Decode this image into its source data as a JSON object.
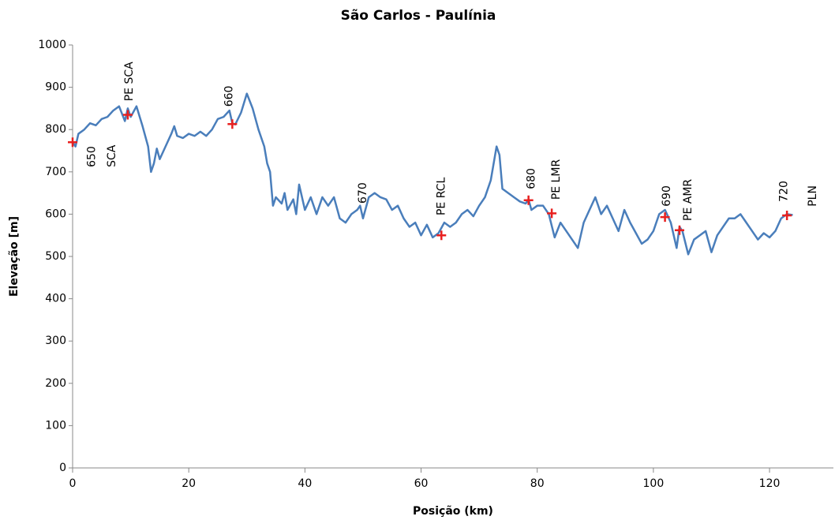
{
  "chart_data": {
    "type": "line",
    "title": "São Carlos - Paulínia",
    "x_label": "Posição (km)",
    "y_label": "Elevação [m]",
    "xlim": [
      0,
      131
    ],
    "xticks": [
      0,
      20,
      40,
      60,
      80,
      100,
      120
    ],
    "ylim": [
      0,
      1000
    ],
    "yticks": [
      0,
      100,
      200,
      300,
      400,
      500,
      600,
      700,
      800,
      900,
      1000
    ],
    "grid": false,
    "series": [
      {
        "color": "#4a7ebb",
        "x": [
          0,
          0.5,
          1,
          2,
          3,
          4,
          5,
          6,
          7,
          8,
          9,
          9.5,
          10,
          11,
          12,
          13,
          13.5,
          14,
          14.5,
          15,
          16,
          17,
          17.5,
          18,
          19,
          20,
          21,
          22,
          23,
          24,
          25,
          26,
          27,
          27.5,
          28,
          29,
          30,
          31,
          32,
          33,
          33.5,
          34,
          34.5,
          35,
          36,
          36.5,
          37,
          38,
          38.5,
          39,
          40,
          41,
          42,
          43,
          44,
          45,
          46,
          47,
          48,
          49,
          49.5,
          50,
          51,
          52,
          53,
          54,
          55,
          56,
          57,
          58,
          59,
          60,
          61,
          62,
          63,
          64,
          65,
          66,
          67,
          68,
          69,
          70,
          71,
          72,
          73,
          73.5,
          74,
          75,
          76,
          77,
          78,
          78.5,
          79,
          80,
          81,
          82,
          83,
          84,
          85,
          86,
          87,
          88,
          89,
          90,
          91,
          92,
          93,
          94,
          95,
          96,
          97,
          98,
          99,
          100,
          101,
          102,
          103,
          104,
          104.5,
          105,
          106,
          107,
          108,
          109,
          110,
          111,
          112,
          113,
          114,
          115,
          116,
          117,
          118,
          119,
          120,
          121,
          122,
          123,
          124
        ],
        "values": [
          770,
          760,
          790,
          800,
          815,
          810,
          825,
          830,
          845,
          855,
          820,
          850,
          830,
          855,
          810,
          760,
          700,
          720,
          755,
          730,
          760,
          790,
          808,
          785,
          780,
          790,
          785,
          795,
          785,
          800,
          825,
          830,
          845,
          815,
          812,
          840,
          885,
          850,
          800,
          760,
          720,
          700,
          620,
          640,
          625,
          650,
          610,
          635,
          600,
          670,
          610,
          640,
          600,
          640,
          620,
          640,
          590,
          580,
          600,
          610,
          620,
          590,
          640,
          650,
          640,
          635,
          610,
          620,
          590,
          570,
          580,
          550,
          575,
          545,
          555,
          580,
          570,
          580,
          600,
          610,
          595,
          620,
          640,
          680,
          760,
          740,
          660,
          650,
          640,
          630,
          625,
          635,
          610,
          620,
          620,
          600,
          545,
          580,
          560,
          540,
          520,
          580,
          610,
          640,
          600,
          620,
          590,
          560,
          610,
          580,
          555,
          530,
          540,
          560,
          600,
          610,
          580,
          520,
          570,
          560,
          505,
          540,
          550,
          560,
          510,
          550,
          570,
          590,
          590,
          600,
          580,
          560,
          540,
          555,
          545,
          560,
          590,
          600,
          598
        ]
      }
    ],
    "markers": {
      "color": "#e8201f",
      "x": [
        0,
        9.5,
        27.5,
        63.5,
        78.5,
        82.5,
        102,
        104.5,
        123
      ],
      "values": [
        770,
        835,
        813,
        550,
        633,
        602,
        593,
        562,
        597
      ]
    },
    "annotations": [
      {
        "text": "650",
        "x": 3.3,
        "y": 711
      },
      {
        "text": "SCA",
        "x": 6.8,
        "y": 711
      },
      {
        "text": "PE SCA",
        "x": 9.8,
        "y": 867
      },
      {
        "text": "660",
        "x": 27,
        "y": 854
      },
      {
        "text": "670",
        "x": 50,
        "y": 625
      },
      {
        "text": "PE RCL",
        "x": 63.5,
        "y": 597
      },
      {
        "text": "680",
        "x": 79,
        "y": 659
      },
      {
        "text": "PE LMR",
        "x": 83.3,
        "y": 634
      },
      {
        "text": "690",
        "x": 102.3,
        "y": 618
      },
      {
        "text": "PE AMR",
        "x": 106,
        "y": 584
      },
      {
        "text": "720",
        "x": 122.5,
        "y": 629
      },
      {
        "text": "PLN",
        "x": 127.5,
        "y": 618
      }
    ]
  }
}
